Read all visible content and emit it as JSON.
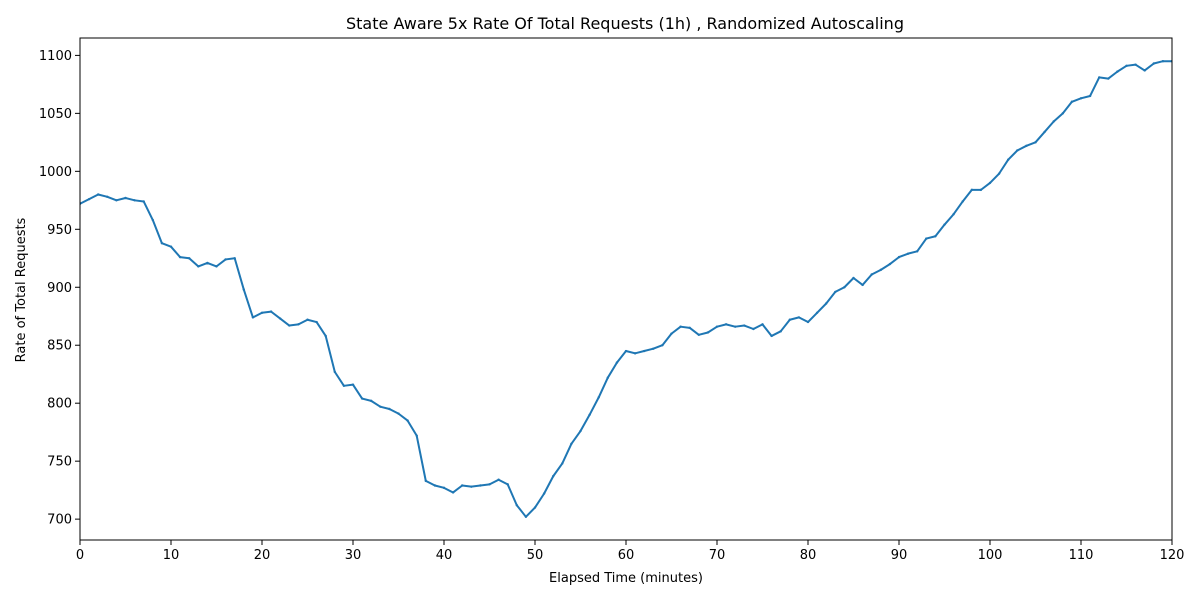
{
  "chart_data": {
    "type": "line",
    "title": "State Aware 5x Rate Of Total Requests (1h) , Randomized Autoscaling",
    "xlabel": "Elapsed Time (minutes)",
    "ylabel": "Rate of Total Requests",
    "xlim": [
      0,
      120
    ],
    "ylim": [
      682,
      1115
    ],
    "xticks": [
      0,
      10,
      20,
      30,
      40,
      50,
      60,
      70,
      80,
      90,
      100,
      110,
      120
    ],
    "yticks": [
      700,
      750,
      800,
      850,
      900,
      950,
      1000,
      1050,
      1100
    ],
    "grid": false,
    "legend": "none",
    "line_color": "#1f77b4",
    "series": [
      {
        "x": [
          0,
          1,
          2,
          3,
          4,
          5,
          6,
          7,
          8,
          9,
          10,
          11,
          12,
          13,
          14,
          15,
          16,
          17,
          18,
          19,
          20,
          21,
          22,
          23,
          24,
          25,
          26,
          27,
          28,
          29,
          30,
          31,
          32,
          33,
          34,
          35,
          36,
          37,
          38,
          39,
          40,
          41,
          42,
          43,
          44,
          45,
          46,
          47,
          48,
          49,
          50,
          51,
          52,
          53,
          54,
          55,
          56,
          57,
          58,
          59,
          60,
          61,
          62,
          63,
          64,
          65,
          66,
          67,
          68,
          69,
          70,
          71,
          72,
          73,
          74,
          75,
          76,
          77,
          78,
          79,
          80,
          81,
          82,
          83,
          84,
          85,
          86,
          87,
          88,
          89,
          90,
          91,
          92,
          93,
          94,
          95,
          96,
          97,
          98,
          99,
          100,
          101,
          102,
          103,
          104,
          105,
          106,
          107,
          108,
          109,
          110,
          111,
          112,
          113,
          114,
          115,
          116,
          117,
          118,
          119,
          120
        ],
        "values": [
          972,
          976,
          980,
          978,
          975,
          977,
          975,
          974,
          958,
          938,
          935,
          926,
          925,
          918,
          921,
          918,
          924,
          925,
          898,
          874,
          878,
          879,
          873,
          867,
          868,
          872,
          870,
          858,
          827,
          815,
          816,
          804,
          802,
          797,
          795,
          791,
          785,
          772,
          733,
          729,
          727,
          723,
          729,
          728,
          729,
          730,
          734,
          730,
          712,
          702,
          710,
          722,
          737,
          748,
          765,
          776,
          790,
          805,
          822,
          835,
          845,
          843,
          845,
          847,
          850,
          860,
          866,
          865,
          859,
          861,
          866,
          868,
          866,
          867,
          864,
          868,
          858,
          862,
          872,
          874,
          870,
          878,
          886,
          896,
          900,
          908,
          902,
          911,
          915,
          920,
          926,
          929,
          931,
          942,
          944,
          954,
          963,
          974,
          984,
          984,
          990,
          998,
          1010,
          1018,
          1022,
          1025,
          1034,
          1043,
          1050,
          1060,
          1063,
          1065,
          1081,
          1080,
          1086,
          1091,
          1092,
          1087,
          1093,
          1095,
          1095
        ]
      }
    ]
  }
}
